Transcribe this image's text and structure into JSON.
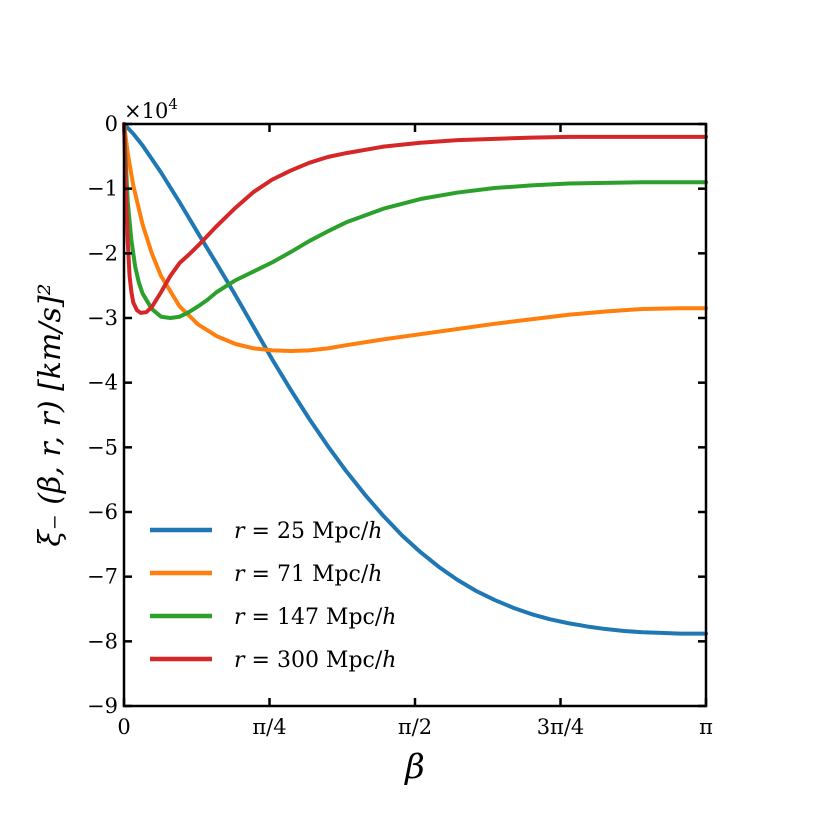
{
  "chart_data": {
    "type": "line",
    "xlabel": "β",
    "ylabel": "ξ₋ (β, r, r) [km/s]²",
    "y_offset_label": "×10",
    "y_offset_exponent": "4",
    "xlim": [
      0,
      3.14159
    ],
    "ylim": [
      -9,
      0
    ],
    "x_ticks": [
      {
        "value": 0,
        "label": "0"
      },
      {
        "value": 0.7854,
        "label": "π/4"
      },
      {
        "value": 1.5708,
        "label": "π/2"
      },
      {
        "value": 2.3562,
        "label": "3π/4"
      },
      {
        "value": 3.14159,
        "label": "π"
      }
    ],
    "y_ticks": [
      {
        "value": 0,
        "label": "0"
      },
      {
        "value": -1,
        "label": "−1"
      },
      {
        "value": -2,
        "label": "−2"
      },
      {
        "value": -3,
        "label": "−3"
      },
      {
        "value": -4,
        "label": "−4"
      },
      {
        "value": -5,
        "label": "−5"
      },
      {
        "value": -6,
        "label": "−6"
      },
      {
        "value": -7,
        "label": "−7"
      },
      {
        "value": -8,
        "label": "−8"
      },
      {
        "value": -9,
        "label": "−9"
      }
    ],
    "grid": false,
    "legend_position": "bottom-left",
    "series": [
      {
        "name": "r = 25 Mpc/h",
        "legend_var": "r",
        "legend_rest": " = 25 Mpc/",
        "legend_unit_var": "h",
        "color": "#1f77b4",
        "x": [
          0,
          0.05,
          0.1,
          0.2,
          0.3,
          0.4,
          0.5,
          0.6,
          0.7,
          0.8,
          0.9,
          1.0,
          1.1,
          1.2,
          1.3,
          1.4,
          1.5,
          1.6,
          1.7,
          1.8,
          1.9,
          2.0,
          2.1,
          2.2,
          2.3,
          2.4,
          2.5,
          2.6,
          2.7,
          2.8,
          2.9,
          3.0,
          3.14159
        ],
        "y": [
          0,
          -0.15,
          -0.33,
          -0.75,
          -1.21,
          -1.69,
          -2.16,
          -2.64,
          -3.14,
          -3.64,
          -4.11,
          -4.56,
          -4.98,
          -5.37,
          -5.73,
          -6.06,
          -6.36,
          -6.62,
          -6.85,
          -7.05,
          -7.22,
          -7.36,
          -7.48,
          -7.58,
          -7.66,
          -7.72,
          -7.77,
          -7.81,
          -7.84,
          -7.86,
          -7.87,
          -7.88,
          -7.88
        ]
      },
      {
        "name": "r = 71 Mpc/h",
        "legend_var": "r",
        "legend_rest": " = 71 Mpc/",
        "legend_unit_var": "h",
        "color": "#ff7f0e",
        "x": [
          0,
          0.02,
          0.05,
          0.1,
          0.15,
          0.2,
          0.3,
          0.4,
          0.5,
          0.6,
          0.7,
          0.8,
          0.9,
          1.0,
          1.1,
          1.2,
          1.4,
          1.6,
          1.8,
          2.0,
          2.2,
          2.4,
          2.6,
          2.8,
          3.0,
          3.14159
        ],
        "y": [
          0,
          -0.45,
          -0.95,
          -1.55,
          -2.0,
          -2.35,
          -2.82,
          -3.1,
          -3.28,
          -3.4,
          -3.47,
          -3.5,
          -3.51,
          -3.5,
          -3.47,
          -3.42,
          -3.33,
          -3.25,
          -3.17,
          -3.09,
          -3.02,
          -2.95,
          -2.9,
          -2.86,
          -2.85,
          -2.85
        ]
      },
      {
        "name": "r = 147 Mpc/h",
        "legend_var": "r",
        "legend_rest": " = 147 Mpc/",
        "legend_unit_var": "h",
        "color": "#2ca02c",
        "x": [
          0,
          0.01,
          0.02,
          0.04,
          0.06,
          0.08,
          0.1,
          0.15,
          0.2,
          0.25,
          0.3,
          0.35,
          0.4,
          0.45,
          0.5,
          0.6,
          0.7,
          0.8,
          0.9,
          1.0,
          1.1,
          1.2,
          1.4,
          1.6,
          1.8,
          2.0,
          2.2,
          2.4,
          2.6,
          2.8,
          3.0,
          3.14159
        ],
        "y": [
          0,
          -0.6,
          -1.2,
          -1.8,
          -2.2,
          -2.45,
          -2.62,
          -2.86,
          -2.98,
          -3.0,
          -2.98,
          -2.91,
          -2.82,
          -2.72,
          -2.6,
          -2.42,
          -2.28,
          -2.14,
          -1.98,
          -1.81,
          -1.66,
          -1.52,
          -1.31,
          -1.16,
          -1.06,
          -0.99,
          -0.95,
          -0.92,
          -0.91,
          -0.9,
          -0.9,
          -0.9
        ]
      },
      {
        "name": "r = 300 Mpc/h",
        "legend_var": "r",
        "legend_rest": " = 300 Mpc/",
        "legend_unit_var": "h",
        "color": "#d62728",
        "x": [
          0,
          0.005,
          0.01,
          0.02,
          0.03,
          0.04,
          0.05,
          0.07,
          0.09,
          0.12,
          0.15,
          0.2,
          0.25,
          0.3,
          0.35,
          0.4,
          0.5,
          0.6,
          0.7,
          0.8,
          0.9,
          1.0,
          1.1,
          1.2,
          1.4,
          1.6,
          1.8,
          2.0,
          2.2,
          2.4,
          2.6,
          2.8,
          3.0,
          3.14159
        ],
        "y": [
          0,
          -0.5,
          -1.0,
          -1.8,
          -2.35,
          -2.6,
          -2.76,
          -2.88,
          -2.92,
          -2.91,
          -2.83,
          -2.6,
          -2.35,
          -2.15,
          -2.02,
          -1.88,
          -1.58,
          -1.3,
          -1.05,
          -0.86,
          -0.72,
          -0.6,
          -0.51,
          -0.45,
          -0.35,
          -0.29,
          -0.25,
          -0.23,
          -0.21,
          -0.2,
          -0.2,
          -0.2,
          -0.2,
          -0.2
        ]
      }
    ]
  }
}
